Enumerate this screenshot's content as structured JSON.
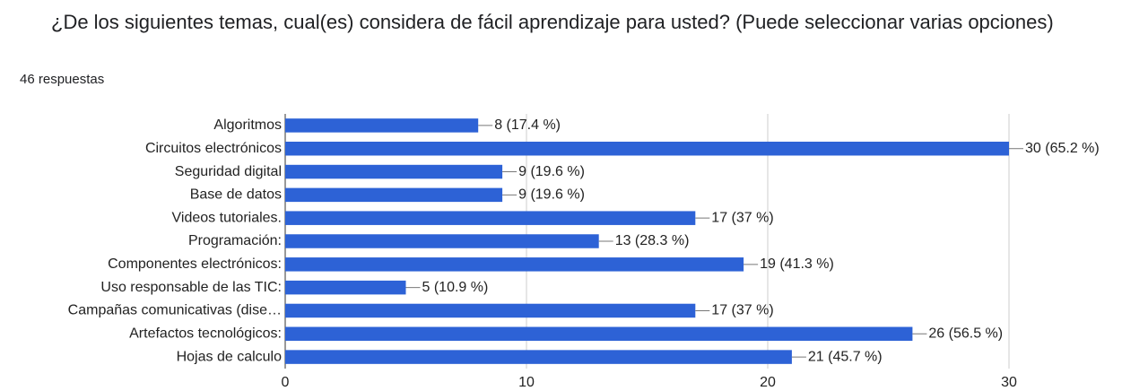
{
  "chart_data": {
    "type": "bar",
    "orientation": "horizontal",
    "title": "¿De los siguientes temas, cual(es) considera de fácil aprendizaje para usted? (Puede seleccionar varias opciones)",
    "subtitle": "46 respuestas",
    "categories": [
      "Algoritmos",
      "Circuitos electrónicos",
      "Seguridad digital",
      "Base de datos",
      "Videos tutoriales.",
      "Programación:",
      "Componentes electrónicos:",
      "Uso responsable de las TIC:",
      "Campañas comunicativas (dise…",
      "Artefactos tecnológicos:",
      "Hojas de calculo"
    ],
    "values": [
      8,
      30,
      9,
      9,
      17,
      13,
      19,
      5,
      17,
      26,
      21
    ],
    "value_labels": [
      "8 (17.4 %)",
      "30 (65.2 %)",
      "9 (19.6 %)",
      "9 (19.6 %)",
      "17 (37 %)",
      "13 (28.3 %)",
      "19 (41.3 %)",
      "5 (10.9 %)",
      "17 (37 %)",
      "26 (56.5 %)",
      "21 (45.7 %)"
    ],
    "color": "#2d62d6",
    "xlim": [
      0,
      30
    ],
    "xticks": [
      0,
      10,
      20,
      30
    ],
    "grid": true
  }
}
